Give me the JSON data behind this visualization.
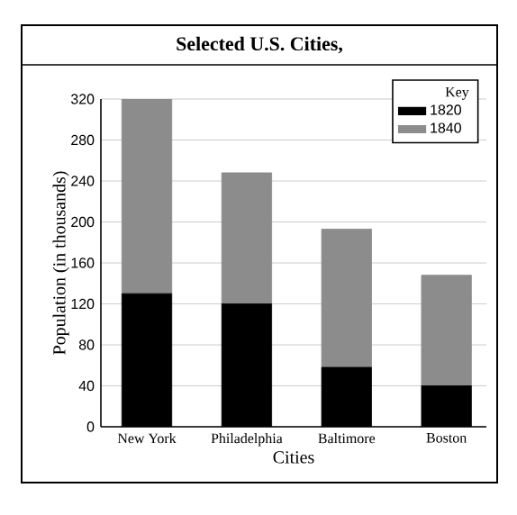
{
  "chart_data": {
    "type": "bar",
    "title": "Selected U.S. Cities,",
    "xlabel": "Cities",
    "ylabel": "Population (in thousands)",
    "legend_title": "Key",
    "categories": [
      "New York",
      "Philadelphia",
      "Baltimore",
      "Boston"
    ],
    "stacked": true,
    "series": [
      {
        "name": "1820",
        "color": "#000000",
        "values": [
          130,
          120,
          58,
          40
        ]
      },
      {
        "name": "1840",
        "color": "#8c8c8c",
        "values": [
          190,
          128,
          135,
          108
        ]
      }
    ],
    "ylim": [
      0,
      320
    ],
    "yticks": [
      0,
      40,
      80,
      120,
      160,
      200,
      240,
      280,
      320
    ],
    "grid": "y",
    "legend": "top right"
  }
}
